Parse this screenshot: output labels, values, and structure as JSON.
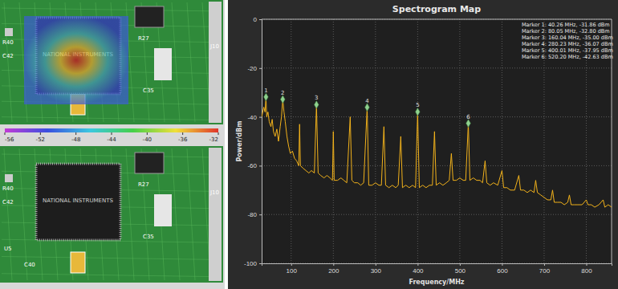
{
  "chart_data": {
    "type": "line",
    "title": "Spectrogram Map",
    "x_label": "Frequency/MHz",
    "y_label": "Power/dBm",
    "xlim": [
      30,
      860
    ],
    "xticks": [
      100,
      200,
      300,
      400,
      500,
      600,
      700,
      800
    ],
    "ylim": [
      -100,
      0
    ],
    "yticks": [
      -100,
      -80,
      -60,
      -40,
      -20,
      0
    ],
    "grid": true,
    "x": [
      30,
      35,
      38,
      40.26,
      42,
      45,
      48,
      52,
      55,
      58,
      62,
      66,
      70,
      74,
      77,
      80.05,
      83,
      86,
      90,
      94,
      98,
      103,
      108,
      113,
      118,
      120,
      122,
      128,
      135,
      142,
      148,
      155,
      160.04,
      164,
      170,
      178,
      185,
      192,
      198,
      200,
      202,
      210,
      218,
      225,
      232,
      240,
      244,
      250,
      258,
      265,
      272,
      280.23,
      284,
      292,
      300,
      308,
      314,
      320,
      324,
      332,
      340,
      348,
      354,
      360,
      364,
      372,
      380,
      388,
      395,
      400.01,
      404,
      412,
      420,
      428,
      435,
      440,
      444,
      452,
      460,
      468,
      475,
      480,
      484,
      492,
      500,
      508,
      514,
      520.2,
      524,
      532,
      540,
      548,
      554,
      560,
      564,
      572,
      580,
      590,
      600,
      604,
      612,
      620,
      630,
      640,
      644,
      652,
      660,
      668,
      676,
      680,
      684,
      692,
      700,
      708,
      716,
      720,
      724,
      732,
      740,
      748,
      756,
      760,
      764,
      772,
      780,
      790,
      800,
      804,
      812,
      820,
      830,
      840,
      844,
      852,
      860
    ],
    "series": [
      {
        "color": "#f2b21b",
        "values": [
          -40,
          -36,
          -38,
          -31.86,
          -40,
          -38,
          -42,
          -44,
          -41,
          -46,
          -48,
          -45,
          -50,
          -44,
          -40,
          -32.8,
          -38,
          -42,
          -48,
          -52,
          -55,
          -54,
          -57,
          -58,
          -60,
          -43,
          -60,
          -61,
          -62,
          -63,
          -62,
          -63,
          -35,
          -63,
          -64,
          -65,
          -64,
          -65,
          -66,
          -46,
          -66,
          -66,
          -65,
          -66,
          -67,
          -40,
          -66,
          -67,
          -67,
          -68,
          -67,
          -36.07,
          -68,
          -68,
          -67,
          -68,
          -68,
          -44,
          -68,
          -69,
          -68,
          -69,
          -68,
          -48,
          -69,
          -68,
          -69,
          -68,
          -69,
          -37.95,
          -69,
          -68,
          -69,
          -68,
          -68,
          -46,
          -68,
          -67,
          -68,
          -67,
          -66,
          -55,
          -66,
          -66,
          -65,
          -66,
          -66,
          -42.63,
          -66,
          -65,
          -66,
          -66,
          -67,
          -58,
          -67,
          -68,
          -67,
          -68,
          -62,
          -69,
          -69,
          -70,
          -70,
          -64,
          -70,
          -70,
          -71,
          -70,
          -71,
          -66,
          -71,
          -72,
          -73,
          -74,
          -74,
          -70,
          -75,
          -75,
          -75,
          -76,
          -75,
          -72,
          -76,
          -76,
          -76,
          -76,
          -74,
          -76,
          -76,
          -77,
          -76,
          -74,
          -77,
          -76,
          -77
        ]
      }
    ],
    "markers": {
      "color": "#8fd18f",
      "marker": "diamond",
      "x": [
        40.26,
        80.05,
        160.04,
        280.23,
        400.01,
        520.2
      ],
      "values": [
        -31.86,
        -32.8,
        -35,
        -36.07,
        -37.95,
        -42.63
      ],
      "labels": [
        "1",
        "2",
        "3",
        "4",
        "5",
        "6"
      ]
    },
    "annotations": [
      "Marker 1: 40.26 MHz, -31.86 dBm",
      "Marker 2: 80.05 MHz, -32.80 dBm",
      "Marker 3: 160.04 MHz, -35.00 dBm",
      "Marker 4: 280.23 MHz, -36.07 dBm",
      "Marker 5: 400.01 MHz, -37.95 dBm",
      "Marker 6: 520.20 MHz, -42.63 dBm"
    ]
  },
  "heatmap_panel": {
    "colorbar": {
      "range": [
        -56,
        -32
      ],
      "ticks": [
        -56,
        -52,
        -48,
        -44,
        -40,
        -36,
        -32
      ]
    },
    "chip_label": "NATIONAL INSTRUMENTS",
    "top_image_labels": [
      "R40",
      "C42",
      "R27",
      "C35",
      "J10"
    ],
    "bottom_image_labels": [
      "R40",
      "C42",
      "R27",
      "C35",
      "J10",
      "U5",
      "C40"
    ]
  }
}
